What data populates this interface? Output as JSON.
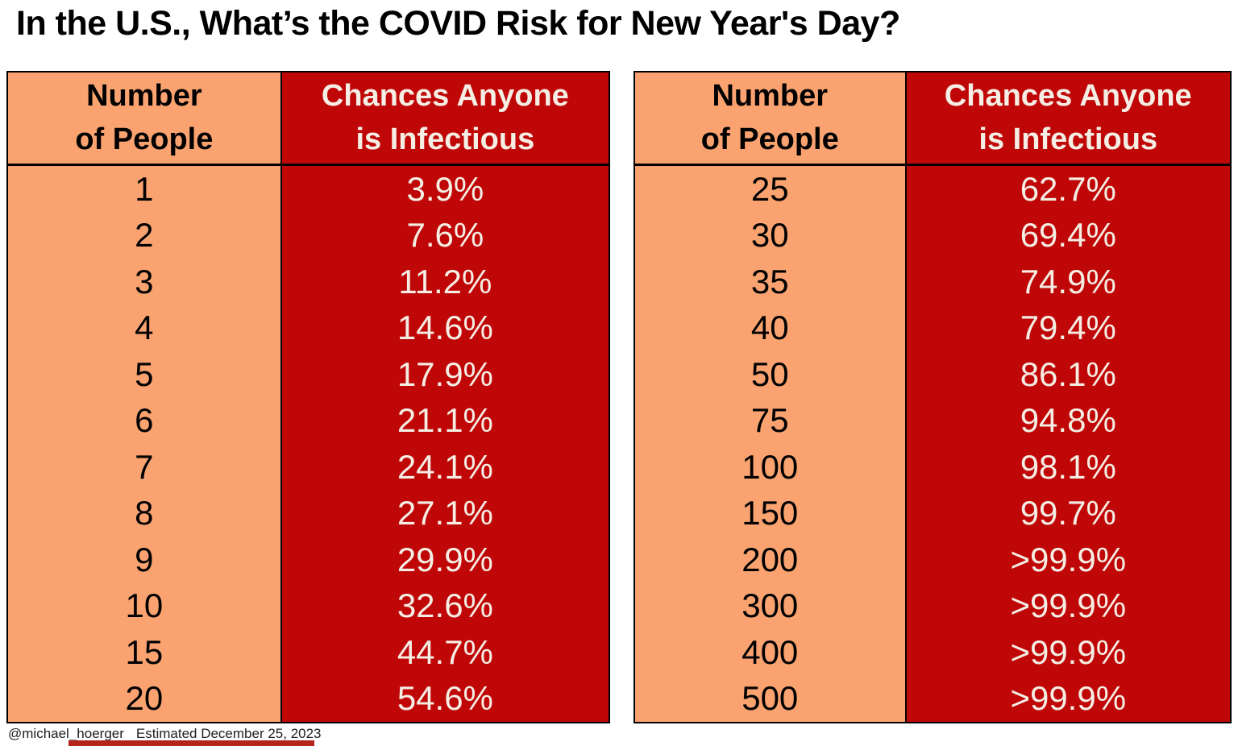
{
  "title": "In the U.S., What’s the COVID Risk for New Year's Day?",
  "footer": {
    "handle": "@michael_hoerger",
    "estimated": "Estimated December 25, 2023"
  },
  "colors": {
    "peach": "#FAA370",
    "dark_red": "#C00707",
    "cream_text": "#F4EEE4",
    "border_black": "#000000",
    "bottom_bar_red": "#b5241c"
  },
  "tables": [
    {
      "header": {
        "people_line1": "Number",
        "people_line2": "of People",
        "chance_line1": "Chances Anyone",
        "chance_line2": "is Infectious"
      },
      "rows": [
        {
          "people": "1",
          "chance": "3.9%"
        },
        {
          "people": "2",
          "chance": "7.6%"
        },
        {
          "people": "3",
          "chance": "11.2%"
        },
        {
          "people": "4",
          "chance": "14.6%"
        },
        {
          "people": "5",
          "chance": "17.9%"
        },
        {
          "people": "6",
          "chance": "21.1%"
        },
        {
          "people": "7",
          "chance": "24.1%"
        },
        {
          "people": "8",
          "chance": "27.1%"
        },
        {
          "people": "9",
          "chance": "29.9%"
        },
        {
          "people": "10",
          "chance": "32.6%"
        },
        {
          "people": "15",
          "chance": "44.7%"
        },
        {
          "people": "20",
          "chance": "54.6%"
        }
      ]
    },
    {
      "header": {
        "people_line1": "Number",
        "people_line2": "of People",
        "chance_line1": "Chances Anyone",
        "chance_line2": "is Infectious"
      },
      "rows": [
        {
          "people": "25",
          "chance": "62.7%"
        },
        {
          "people": "30",
          "chance": "69.4%"
        },
        {
          "people": "35",
          "chance": "74.9%"
        },
        {
          "people": "40",
          "chance": "79.4%"
        },
        {
          "people": "50",
          "chance": "86.1%"
        },
        {
          "people": "75",
          "chance": "94.8%"
        },
        {
          "people": "100",
          "chance": "98.1%"
        },
        {
          "people": "150",
          "chance": "99.7%"
        },
        {
          "people": "200",
          "chance": ">99.9%"
        },
        {
          "people": "300",
          "chance": ">99.9%"
        },
        {
          "people": "400",
          "chance": ">99.9%"
        },
        {
          "people": "500",
          "chance": ">99.9%"
        }
      ]
    }
  ],
  "chart_data": {
    "type": "table",
    "title": "In the U.S., What’s the COVID Risk for New Year's Day?",
    "columns": [
      "Number of People",
      "Chances Anyone is Infectious"
    ],
    "rows": [
      [
        1,
        "3.9%"
      ],
      [
        2,
        "7.6%"
      ],
      [
        3,
        "11.2%"
      ],
      [
        4,
        "14.6%"
      ],
      [
        5,
        "17.9%"
      ],
      [
        6,
        "21.1%"
      ],
      [
        7,
        "24.1%"
      ],
      [
        8,
        "27.1%"
      ],
      [
        9,
        "29.9%"
      ],
      [
        10,
        "32.6%"
      ],
      [
        15,
        "44.7%"
      ],
      [
        20,
        "54.6%"
      ],
      [
        25,
        "62.7%"
      ],
      [
        30,
        "69.4%"
      ],
      [
        35,
        "74.9%"
      ],
      [
        40,
        "79.4%"
      ],
      [
        50,
        "86.1%"
      ],
      [
        75,
        "94.8%"
      ],
      [
        100,
        "98.1%"
      ],
      [
        150,
        "99.7%"
      ],
      [
        200,
        ">99.9%"
      ],
      [
        300,
        ">99.9%"
      ],
      [
        400,
        ">99.9%"
      ],
      [
        500,
        ">99.9%"
      ]
    ],
    "notes": "Estimated December 25, 2023"
  }
}
